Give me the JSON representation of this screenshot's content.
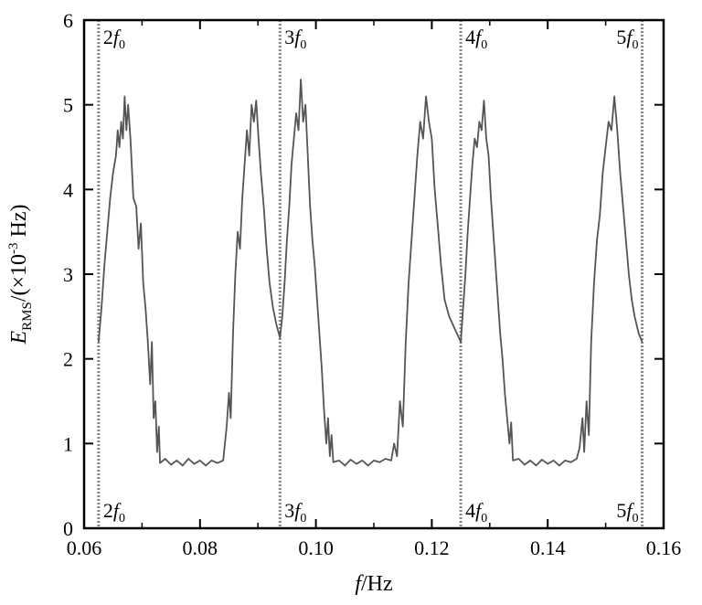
{
  "chart_data": {
    "type": "line",
    "title": "",
    "xlabel": {
      "italic": "f",
      "rest": "/Hz"
    },
    "ylabel": {
      "italic": "E",
      "subscript": "RMS",
      "pre": "/(×10",
      "sup": "-3",
      "post": " Hz)"
    },
    "xlim": [
      0.06,
      0.16
    ],
    "ylim": [
      0,
      6
    ],
    "xticks": [
      0.06,
      0.08,
      0.1,
      0.12,
      0.14,
      0.16
    ],
    "xtick_labels": [
      "0.06",
      "0.08",
      "0.10",
      "0.12",
      "0.14",
      "0.16"
    ],
    "yticks": [
      0,
      1,
      2,
      3,
      4,
      5,
      6
    ],
    "ytick_labels": [
      "0",
      "1",
      "2",
      "3",
      "4",
      "5",
      "6"
    ],
    "grid": false,
    "reference_lines": [
      {
        "x": 0.0625,
        "label_main": "2f",
        "label_sub": "0",
        "label_side": "right"
      },
      {
        "x": 0.0938,
        "label_main": "3f",
        "label_sub": "0",
        "label_side": "right"
      },
      {
        "x": 0.125,
        "label_main": "4f",
        "label_sub": "0",
        "label_side": "right"
      },
      {
        "x": 0.1563,
        "label_main": "5f",
        "label_sub": "0",
        "label_side": "left"
      }
    ],
    "series": [
      {
        "color": "#555555",
        "points": [
          [
            0.0625,
            2.2
          ],
          [
            0.063,
            2.6
          ],
          [
            0.0635,
            3.1
          ],
          [
            0.064,
            3.5
          ],
          [
            0.0645,
            3.9
          ],
          [
            0.065,
            4.2
          ],
          [
            0.0655,
            4.4
          ],
          [
            0.0658,
            4.7
          ],
          [
            0.0661,
            4.5
          ],
          [
            0.0664,
            4.8
          ],
          [
            0.0667,
            4.6
          ],
          [
            0.067,
            5.1
          ],
          [
            0.0673,
            4.7
          ],
          [
            0.0676,
            5.0
          ],
          [
            0.068,
            4.6
          ],
          [
            0.0685,
            3.9
          ],
          [
            0.069,
            3.8
          ],
          [
            0.0694,
            3.3
          ],
          [
            0.0698,
            3.6
          ],
          [
            0.0702,
            2.9
          ],
          [
            0.0706,
            2.6
          ],
          [
            0.071,
            2.2
          ],
          [
            0.0714,
            1.7
          ],
          [
            0.0717,
            2.2
          ],
          [
            0.072,
            1.3
          ],
          [
            0.0723,
            1.5
          ],
          [
            0.0726,
            0.9
          ],
          [
            0.0729,
            1.2
          ],
          [
            0.0731,
            0.77
          ],
          [
            0.074,
            0.82
          ],
          [
            0.075,
            0.75
          ],
          [
            0.076,
            0.8
          ],
          [
            0.077,
            0.74
          ],
          [
            0.078,
            0.82
          ],
          [
            0.079,
            0.76
          ],
          [
            0.08,
            0.8
          ],
          [
            0.081,
            0.74
          ],
          [
            0.082,
            0.8
          ],
          [
            0.083,
            0.77
          ],
          [
            0.084,
            0.8
          ],
          [
            0.0846,
            1.2
          ],
          [
            0.085,
            1.6
          ],
          [
            0.0853,
            1.3
          ],
          [
            0.0857,
            2.3
          ],
          [
            0.0861,
            3.0
          ],
          [
            0.0865,
            3.5
          ],
          [
            0.0869,
            3.3
          ],
          [
            0.0873,
            3.9
          ],
          [
            0.0877,
            4.3
          ],
          [
            0.0881,
            4.7
          ],
          [
            0.0885,
            4.4
          ],
          [
            0.0889,
            5.0
          ],
          [
            0.0893,
            4.8
          ],
          [
            0.0897,
            5.05
          ],
          [
            0.0901,
            4.6
          ],
          [
            0.0905,
            4.2
          ],
          [
            0.091,
            3.8
          ],
          [
            0.0915,
            3.3
          ],
          [
            0.092,
            2.9
          ],
          [
            0.0926,
            2.6
          ],
          [
            0.0932,
            2.4
          ],
          [
            0.0938,
            2.25
          ],
          [
            0.0942,
            2.5
          ],
          [
            0.0946,
            2.9
          ],
          [
            0.095,
            3.4
          ],
          [
            0.0954,
            3.8
          ],
          [
            0.0958,
            4.3
          ],
          [
            0.0962,
            4.6
          ],
          [
            0.0966,
            4.9
          ],
          [
            0.097,
            4.7
          ],
          [
            0.0974,
            5.3
          ],
          [
            0.0978,
            4.8
          ],
          [
            0.0982,
            5.0
          ],
          [
            0.0986,
            4.4
          ],
          [
            0.099,
            3.8
          ],
          [
            0.0994,
            3.4
          ],
          [
            0.0998,
            3.1
          ],
          [
            0.1002,
            2.7
          ],
          [
            0.1006,
            2.3
          ],
          [
            0.101,
            1.9
          ],
          [
            0.1014,
            1.4
          ],
          [
            0.1018,
            1.0
          ],
          [
            0.1021,
            1.3
          ],
          [
            0.1024,
            0.85
          ],
          [
            0.1027,
            1.1
          ],
          [
            0.103,
            0.78
          ],
          [
            0.104,
            0.8
          ],
          [
            0.105,
            0.74
          ],
          [
            0.106,
            0.81
          ],
          [
            0.107,
            0.76
          ],
          [
            0.108,
            0.8
          ],
          [
            0.109,
            0.74
          ],
          [
            0.11,
            0.8
          ],
          [
            0.111,
            0.78
          ],
          [
            0.112,
            0.82
          ],
          [
            0.113,
            0.8
          ],
          [
            0.1135,
            1.0
          ],
          [
            0.114,
            0.85
          ],
          [
            0.1145,
            1.5
          ],
          [
            0.115,
            1.2
          ],
          [
            0.1155,
            2.2
          ],
          [
            0.116,
            2.9
          ],
          [
            0.1165,
            3.4
          ],
          [
            0.117,
            3.9
          ],
          [
            0.1175,
            4.4
          ],
          [
            0.118,
            4.8
          ],
          [
            0.1185,
            4.6
          ],
          [
            0.119,
            5.1
          ],
          [
            0.1195,
            4.8
          ],
          [
            0.12,
            4.6
          ],
          [
            0.1205,
            4.0
          ],
          [
            0.121,
            3.6
          ],
          [
            0.1216,
            3.1
          ],
          [
            0.1222,
            2.7
          ],
          [
            0.123,
            2.5
          ],
          [
            0.124,
            2.35
          ],
          [
            0.125,
            2.2
          ],
          [
            0.1254,
            2.6
          ],
          [
            0.1258,
            3.0
          ],
          [
            0.1262,
            3.5
          ],
          [
            0.1266,
            3.9
          ],
          [
            0.127,
            4.3
          ],
          [
            0.1274,
            4.6
          ],
          [
            0.1278,
            4.5
          ],
          [
            0.1282,
            4.8
          ],
          [
            0.1286,
            4.7
          ],
          [
            0.129,
            5.05
          ],
          [
            0.1294,
            4.6
          ],
          [
            0.1298,
            4.4
          ],
          [
            0.1302,
            3.9
          ],
          [
            0.1306,
            3.5
          ],
          [
            0.131,
            3.1
          ],
          [
            0.1314,
            2.7
          ],
          [
            0.1318,
            2.3
          ],
          [
            0.1322,
            2.0
          ],
          [
            0.1326,
            1.6
          ],
          [
            0.133,
            1.3
          ],
          [
            0.1334,
            1.0
          ],
          [
            0.1337,
            1.25
          ],
          [
            0.134,
            0.8
          ],
          [
            0.135,
            0.82
          ],
          [
            0.136,
            0.75
          ],
          [
            0.137,
            0.8
          ],
          [
            0.138,
            0.74
          ],
          [
            0.139,
            0.81
          ],
          [
            0.14,
            0.76
          ],
          [
            0.141,
            0.8
          ],
          [
            0.142,
            0.74
          ],
          [
            0.143,
            0.8
          ],
          [
            0.144,
            0.78
          ],
          [
            0.145,
            0.82
          ],
          [
            0.1455,
            0.95
          ],
          [
            0.146,
            1.3
          ],
          [
            0.1463,
            0.9
          ],
          [
            0.1467,
            1.5
          ],
          [
            0.1471,
            1.1
          ],
          [
            0.1475,
            2.2
          ],
          [
            0.148,
            2.9
          ],
          [
            0.1485,
            3.4
          ],
          [
            0.149,
            3.7
          ],
          [
            0.1495,
            4.2
          ],
          [
            0.15,
            4.5
          ],
          [
            0.1505,
            4.8
          ],
          [
            0.151,
            4.7
          ],
          [
            0.1515,
            5.1
          ],
          [
            0.152,
            4.7
          ],
          [
            0.1525,
            4.2
          ],
          [
            0.153,
            3.8
          ],
          [
            0.1535,
            3.4
          ],
          [
            0.154,
            3.0
          ],
          [
            0.1545,
            2.7
          ],
          [
            0.155,
            2.5
          ],
          [
            0.1557,
            2.3
          ],
          [
            0.1563,
            2.2
          ]
        ]
      }
    ]
  }
}
